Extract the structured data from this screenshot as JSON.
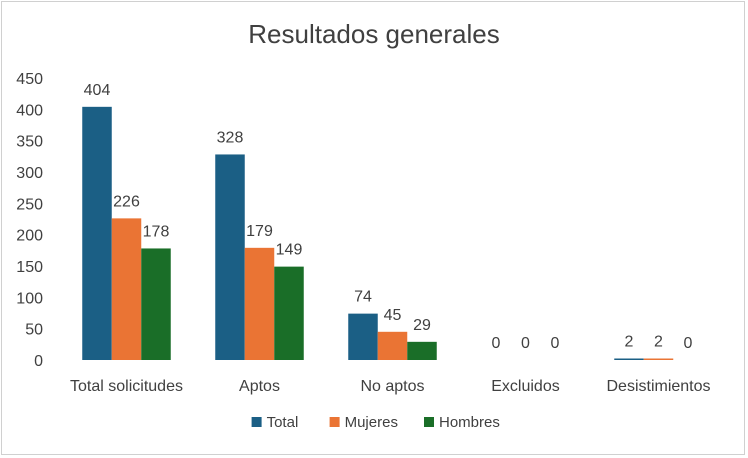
{
  "chart_data": {
    "type": "bar",
    "title": "Resultados generales",
    "xlabel": "",
    "ylabel": "",
    "ylim": [
      0,
      450
    ],
    "ytick_step": 50,
    "grid": false,
    "legend_position": "bottom",
    "categories": [
      "Total solicitudes",
      "Aptos",
      "No aptos",
      "Excluidos",
      "Desistimientos"
    ],
    "series": [
      {
        "name": "Total",
        "color": "#1b5f85",
        "values": [
          404,
          328,
          74,
          0,
          2
        ]
      },
      {
        "name": "Mujeres",
        "color": "#ea7434",
        "values": [
          226,
          179,
          45,
          0,
          2
        ]
      },
      {
        "name": "Hombres",
        "color": "#1a6e28",
        "values": [
          178,
          149,
          29,
          0,
          0
        ]
      }
    ]
  }
}
